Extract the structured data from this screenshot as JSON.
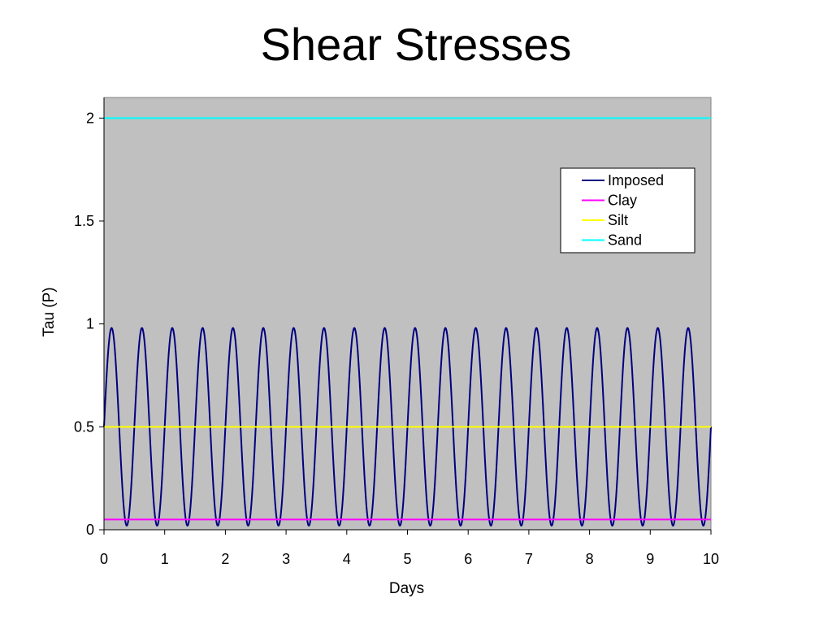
{
  "slide": {
    "title": "Shear Stresses"
  },
  "chart_data": {
    "type": "line",
    "title": "Shear Stresses",
    "xlabel": "Days",
    "ylabel": "Tau (P)",
    "xlim": [
      0,
      10
    ],
    "ylim": [
      0,
      2.1
    ],
    "x_ticks": [
      "0",
      "1",
      "2",
      "3",
      "4",
      "5",
      "6",
      "7",
      "8",
      "9",
      "10"
    ],
    "y_ticks": [
      "0",
      "0.5",
      "1",
      "1.5",
      "2"
    ],
    "grid": false,
    "plot_background": "#c0c0c0",
    "legend_position": "top-right",
    "series": [
      {
        "name": "Imposed",
        "color": "#000080",
        "function": "sinusoid",
        "mean": 0.5,
        "amplitude": 0.48,
        "period_days": 0.5,
        "phase_start": "rising through mean at day 0"
      },
      {
        "name": "Clay",
        "color": "#ff00ff",
        "constant": 0.05
      },
      {
        "name": "Silt",
        "color": "#ffff00",
        "constant": 0.5
      },
      {
        "name": "Sand",
        "color": "#00ffff",
        "constant": 2.0
      }
    ]
  }
}
